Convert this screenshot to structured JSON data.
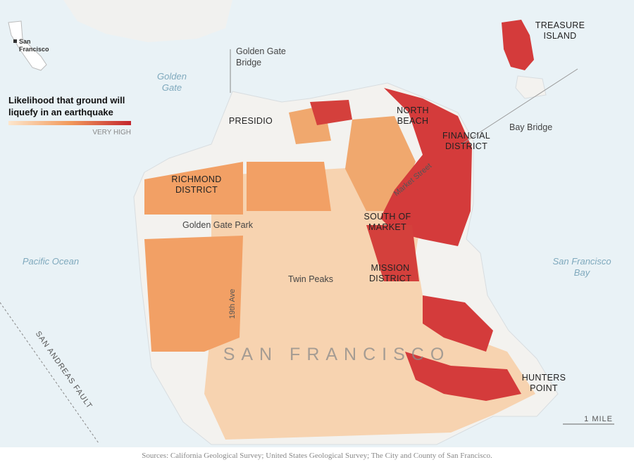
{
  "inset": {
    "label": [
      "San",
      "Francisco"
    ]
  },
  "legend": {
    "title": [
      "Likelihood that ground will",
      "liquefy in an earthquake"
    ],
    "high_label": "VERY HIGH"
  },
  "labels": {
    "golden_gate": [
      "Golden",
      "Gate"
    ],
    "pacific_ocean": "Pacific Ocean",
    "sf_bay": [
      "San Francisco",
      "Bay"
    ],
    "golden_gate_bridge": [
      "Golden Gate",
      "Bridge"
    ],
    "treasure_island": [
      "TREASURE",
      "ISLAND"
    ],
    "bay_bridge": "Bay Bridge",
    "presidio": "PRESIDIO",
    "north_beach": [
      "NORTH",
      "BEACH"
    ],
    "financial_district": [
      "FINANCIAL",
      "DISTRICT"
    ],
    "richmond_district": [
      "RICHMOND",
      "DISTRICT"
    ],
    "golden_gate_park": "Golden Gate Park",
    "south_of_market": [
      "SOUTH OF",
      "MARKET"
    ],
    "market_street": "Market Street",
    "mission_district": [
      "MISSION",
      "DISTRICT"
    ],
    "twin_peaks": "Twin Peaks",
    "nineteenth_ave": "19th Ave",
    "san_francisco": "SAN FRANCISCO",
    "hunters_point": [
      "HUNTERS",
      "POINT"
    ],
    "san_andreas_fault": "SAN ANDREAS FAULT"
  },
  "scale": "1 MILE",
  "source": "Sources: California Geological Survey; United States Geological Survey; The City and County of San Francisco."
}
